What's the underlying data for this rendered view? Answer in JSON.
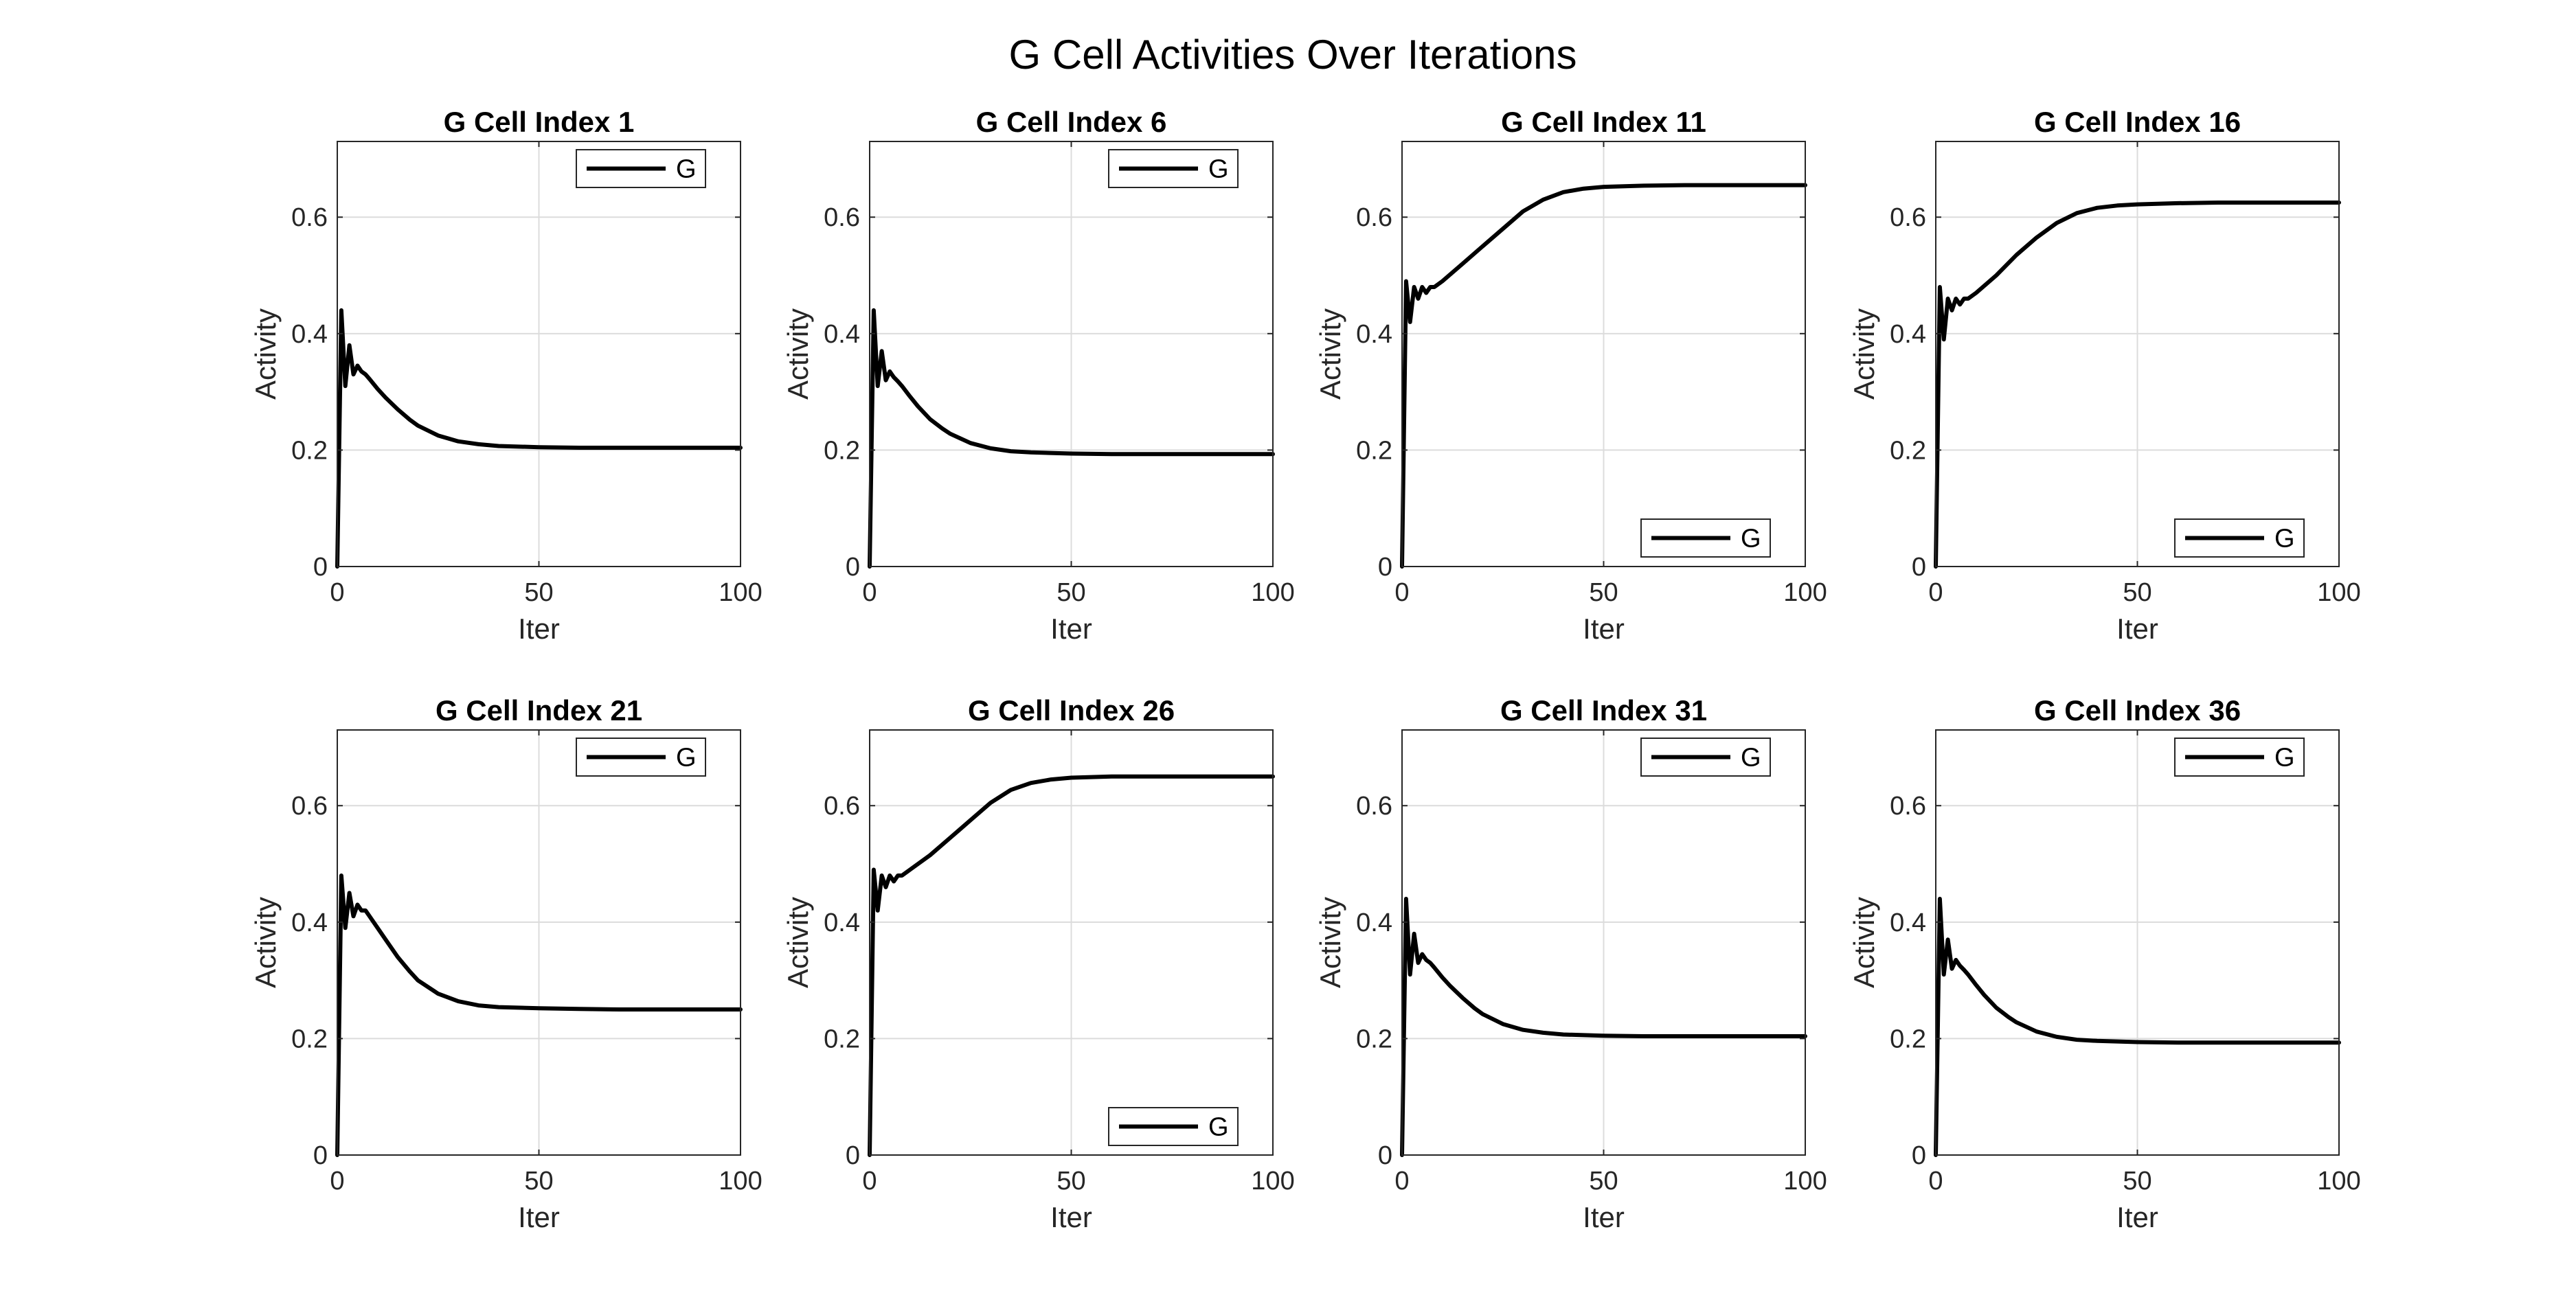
{
  "figure_title": "G Cell Activities Over Iterations",
  "colors": {
    "line": "#000000",
    "grid": "#dcdcdc",
    "axes": "#262626",
    "background": "#ffffff"
  },
  "chart_data": [
    {
      "type": "line",
      "title": "G Cell Index 1",
      "xlabel": "Iter",
      "ylabel": "Activity",
      "xlim": [
        0,
        100
      ],
      "ylim": [
        0,
        0.73
      ],
      "xticks": [
        0,
        50,
        100
      ],
      "yticks": [
        0,
        0.2,
        0.4,
        0.6
      ],
      "grid": true,
      "legend_position": "top-right",
      "series": [
        {
          "name": "G",
          "x": [
            0,
            1,
            2,
            3,
            4,
            5,
            6,
            7,
            8,
            10,
            12,
            15,
            18,
            20,
            25,
            30,
            35,
            40,
            50,
            60,
            70,
            80,
            90,
            100
          ],
          "y": [
            0,
            0.44,
            0.31,
            0.38,
            0.33,
            0.345,
            0.335,
            0.33,
            0.322,
            0.305,
            0.29,
            0.27,
            0.252,
            0.242,
            0.225,
            0.215,
            0.21,
            0.207,
            0.205,
            0.204,
            0.204,
            0.204,
            0.204,
            0.204
          ]
        }
      ]
    },
    {
      "type": "line",
      "title": "G Cell Index 6",
      "xlabel": "Iter",
      "ylabel": "Activity",
      "xlim": [
        0,
        100
      ],
      "ylim": [
        0,
        0.73
      ],
      "xticks": [
        0,
        50,
        100
      ],
      "yticks": [
        0,
        0.2,
        0.4,
        0.6
      ],
      "grid": true,
      "legend_position": "top-right",
      "series": [
        {
          "name": "G",
          "x": [
            0,
            1,
            2,
            3,
            4,
            5,
            6,
            7,
            8,
            10,
            12,
            15,
            18,
            20,
            25,
            30,
            35,
            40,
            50,
            60,
            70,
            80,
            90,
            100
          ],
          "y": [
            0,
            0.44,
            0.31,
            0.37,
            0.32,
            0.335,
            0.325,
            0.318,
            0.31,
            0.292,
            0.275,
            0.253,
            0.237,
            0.228,
            0.212,
            0.203,
            0.198,
            0.196,
            0.194,
            0.193,
            0.193,
            0.193,
            0.193,
            0.193
          ]
        }
      ]
    },
    {
      "type": "line",
      "title": "G Cell Index 11",
      "xlabel": "Iter",
      "ylabel": "Activity",
      "xlim": [
        0,
        100
      ],
      "ylim": [
        0,
        0.73
      ],
      "xticks": [
        0,
        50,
        100
      ],
      "yticks": [
        0,
        0.2,
        0.4,
        0.6
      ],
      "grid": true,
      "legend_position": "bottom-right",
      "series": [
        {
          "name": "G",
          "x": [
            0,
            1,
            2,
            3,
            4,
            5,
            6,
            7,
            8,
            10,
            15,
            20,
            25,
            30,
            35,
            40,
            45,
            50,
            60,
            70,
            80,
            90,
            100
          ],
          "y": [
            0,
            0.49,
            0.42,
            0.48,
            0.46,
            0.48,
            0.47,
            0.48,
            0.48,
            0.49,
            0.52,
            0.55,
            0.58,
            0.61,
            0.63,
            0.643,
            0.649,
            0.652,
            0.654,
            0.655,
            0.655,
            0.655,
            0.655
          ]
        }
      ]
    },
    {
      "type": "line",
      "title": "G Cell Index 16",
      "xlabel": "Iter",
      "ylabel": "Activity",
      "xlim": [
        0,
        100
      ],
      "ylim": [
        0,
        0.73
      ],
      "xticks": [
        0,
        50,
        100
      ],
      "yticks": [
        0,
        0.2,
        0.4,
        0.6
      ],
      "grid": true,
      "legend_position": "bottom-right",
      "series": [
        {
          "name": "G",
          "x": [
            0,
            1,
            2,
            3,
            4,
            5,
            6,
            7,
            8,
            10,
            15,
            20,
            25,
            30,
            35,
            40,
            45,
            50,
            60,
            70,
            80,
            90,
            100
          ],
          "y": [
            0,
            0.48,
            0.39,
            0.46,
            0.44,
            0.46,
            0.45,
            0.46,
            0.46,
            0.47,
            0.5,
            0.535,
            0.565,
            0.59,
            0.607,
            0.616,
            0.62,
            0.622,
            0.624,
            0.625,
            0.625,
            0.625,
            0.625
          ]
        }
      ]
    },
    {
      "type": "line",
      "title": "G Cell Index 21",
      "xlabel": "Iter",
      "ylabel": "Activity",
      "xlim": [
        0,
        100
      ],
      "ylim": [
        0,
        0.73
      ],
      "xticks": [
        0,
        50,
        100
      ],
      "yticks": [
        0,
        0.2,
        0.4,
        0.6
      ],
      "grid": true,
      "legend_position": "top-right",
      "series": [
        {
          "name": "G",
          "x": [
            0,
            1,
            2,
            3,
            4,
            5,
            6,
            7,
            8,
            10,
            12,
            15,
            18,
            20,
            25,
            30,
            35,
            40,
            50,
            60,
            70,
            80,
            90,
            100
          ],
          "y": [
            0,
            0.48,
            0.39,
            0.45,
            0.41,
            0.43,
            0.42,
            0.42,
            0.41,
            0.39,
            0.37,
            0.34,
            0.315,
            0.3,
            0.277,
            0.264,
            0.257,
            0.254,
            0.252,
            0.251,
            0.25,
            0.25,
            0.25,
            0.25
          ]
        }
      ]
    },
    {
      "type": "line",
      "title": "G Cell Index 26",
      "xlabel": "Iter",
      "ylabel": "Activity",
      "xlim": [
        0,
        100
      ],
      "ylim": [
        0,
        0.73
      ],
      "xticks": [
        0,
        50,
        100
      ],
      "yticks": [
        0,
        0.2,
        0.4,
        0.6
      ],
      "grid": true,
      "legend_position": "bottom-right",
      "series": [
        {
          "name": "G",
          "x": [
            0,
            1,
            2,
            3,
            4,
            5,
            6,
            7,
            8,
            10,
            15,
            20,
            25,
            30,
            35,
            40,
            45,
            50,
            60,
            70,
            80,
            90,
            100
          ],
          "y": [
            0,
            0.49,
            0.42,
            0.48,
            0.46,
            0.48,
            0.47,
            0.48,
            0.48,
            0.49,
            0.515,
            0.545,
            0.575,
            0.605,
            0.627,
            0.639,
            0.645,
            0.648,
            0.65,
            0.65,
            0.65,
            0.65,
            0.65
          ]
        }
      ]
    },
    {
      "type": "line",
      "title": "G Cell Index 31",
      "xlabel": "Iter",
      "ylabel": "Activity",
      "xlim": [
        0,
        100
      ],
      "ylim": [
        0,
        0.73
      ],
      "xticks": [
        0,
        50,
        100
      ],
      "yticks": [
        0,
        0.2,
        0.4,
        0.6
      ],
      "grid": true,
      "legend_position": "top-right",
      "series": [
        {
          "name": "G",
          "x": [
            0,
            1,
            2,
            3,
            4,
            5,
            6,
            7,
            8,
            10,
            12,
            15,
            18,
            20,
            25,
            30,
            35,
            40,
            50,
            60,
            70,
            80,
            90,
            100
          ],
          "y": [
            0,
            0.44,
            0.31,
            0.38,
            0.33,
            0.345,
            0.335,
            0.33,
            0.322,
            0.305,
            0.29,
            0.27,
            0.252,
            0.242,
            0.225,
            0.215,
            0.21,
            0.207,
            0.205,
            0.204,
            0.204,
            0.204,
            0.204,
            0.204
          ]
        }
      ]
    },
    {
      "type": "line",
      "title": "G Cell Index 36",
      "xlabel": "Iter",
      "ylabel": "Activity",
      "xlim": [
        0,
        100
      ],
      "ylim": [
        0,
        0.73
      ],
      "xticks": [
        0,
        50,
        100
      ],
      "yticks": [
        0,
        0.2,
        0.4,
        0.6
      ],
      "grid": true,
      "legend_position": "top-right",
      "series": [
        {
          "name": "G",
          "x": [
            0,
            1,
            2,
            3,
            4,
            5,
            6,
            7,
            8,
            10,
            12,
            15,
            18,
            20,
            25,
            30,
            35,
            40,
            50,
            60,
            70,
            80,
            90,
            100
          ],
          "y": [
            0,
            0.44,
            0.31,
            0.37,
            0.32,
            0.335,
            0.325,
            0.318,
            0.31,
            0.292,
            0.275,
            0.253,
            0.237,
            0.228,
            0.212,
            0.203,
            0.198,
            0.196,
            0.194,
            0.193,
            0.193,
            0.193,
            0.193,
            0.193
          ]
        }
      ]
    }
  ]
}
